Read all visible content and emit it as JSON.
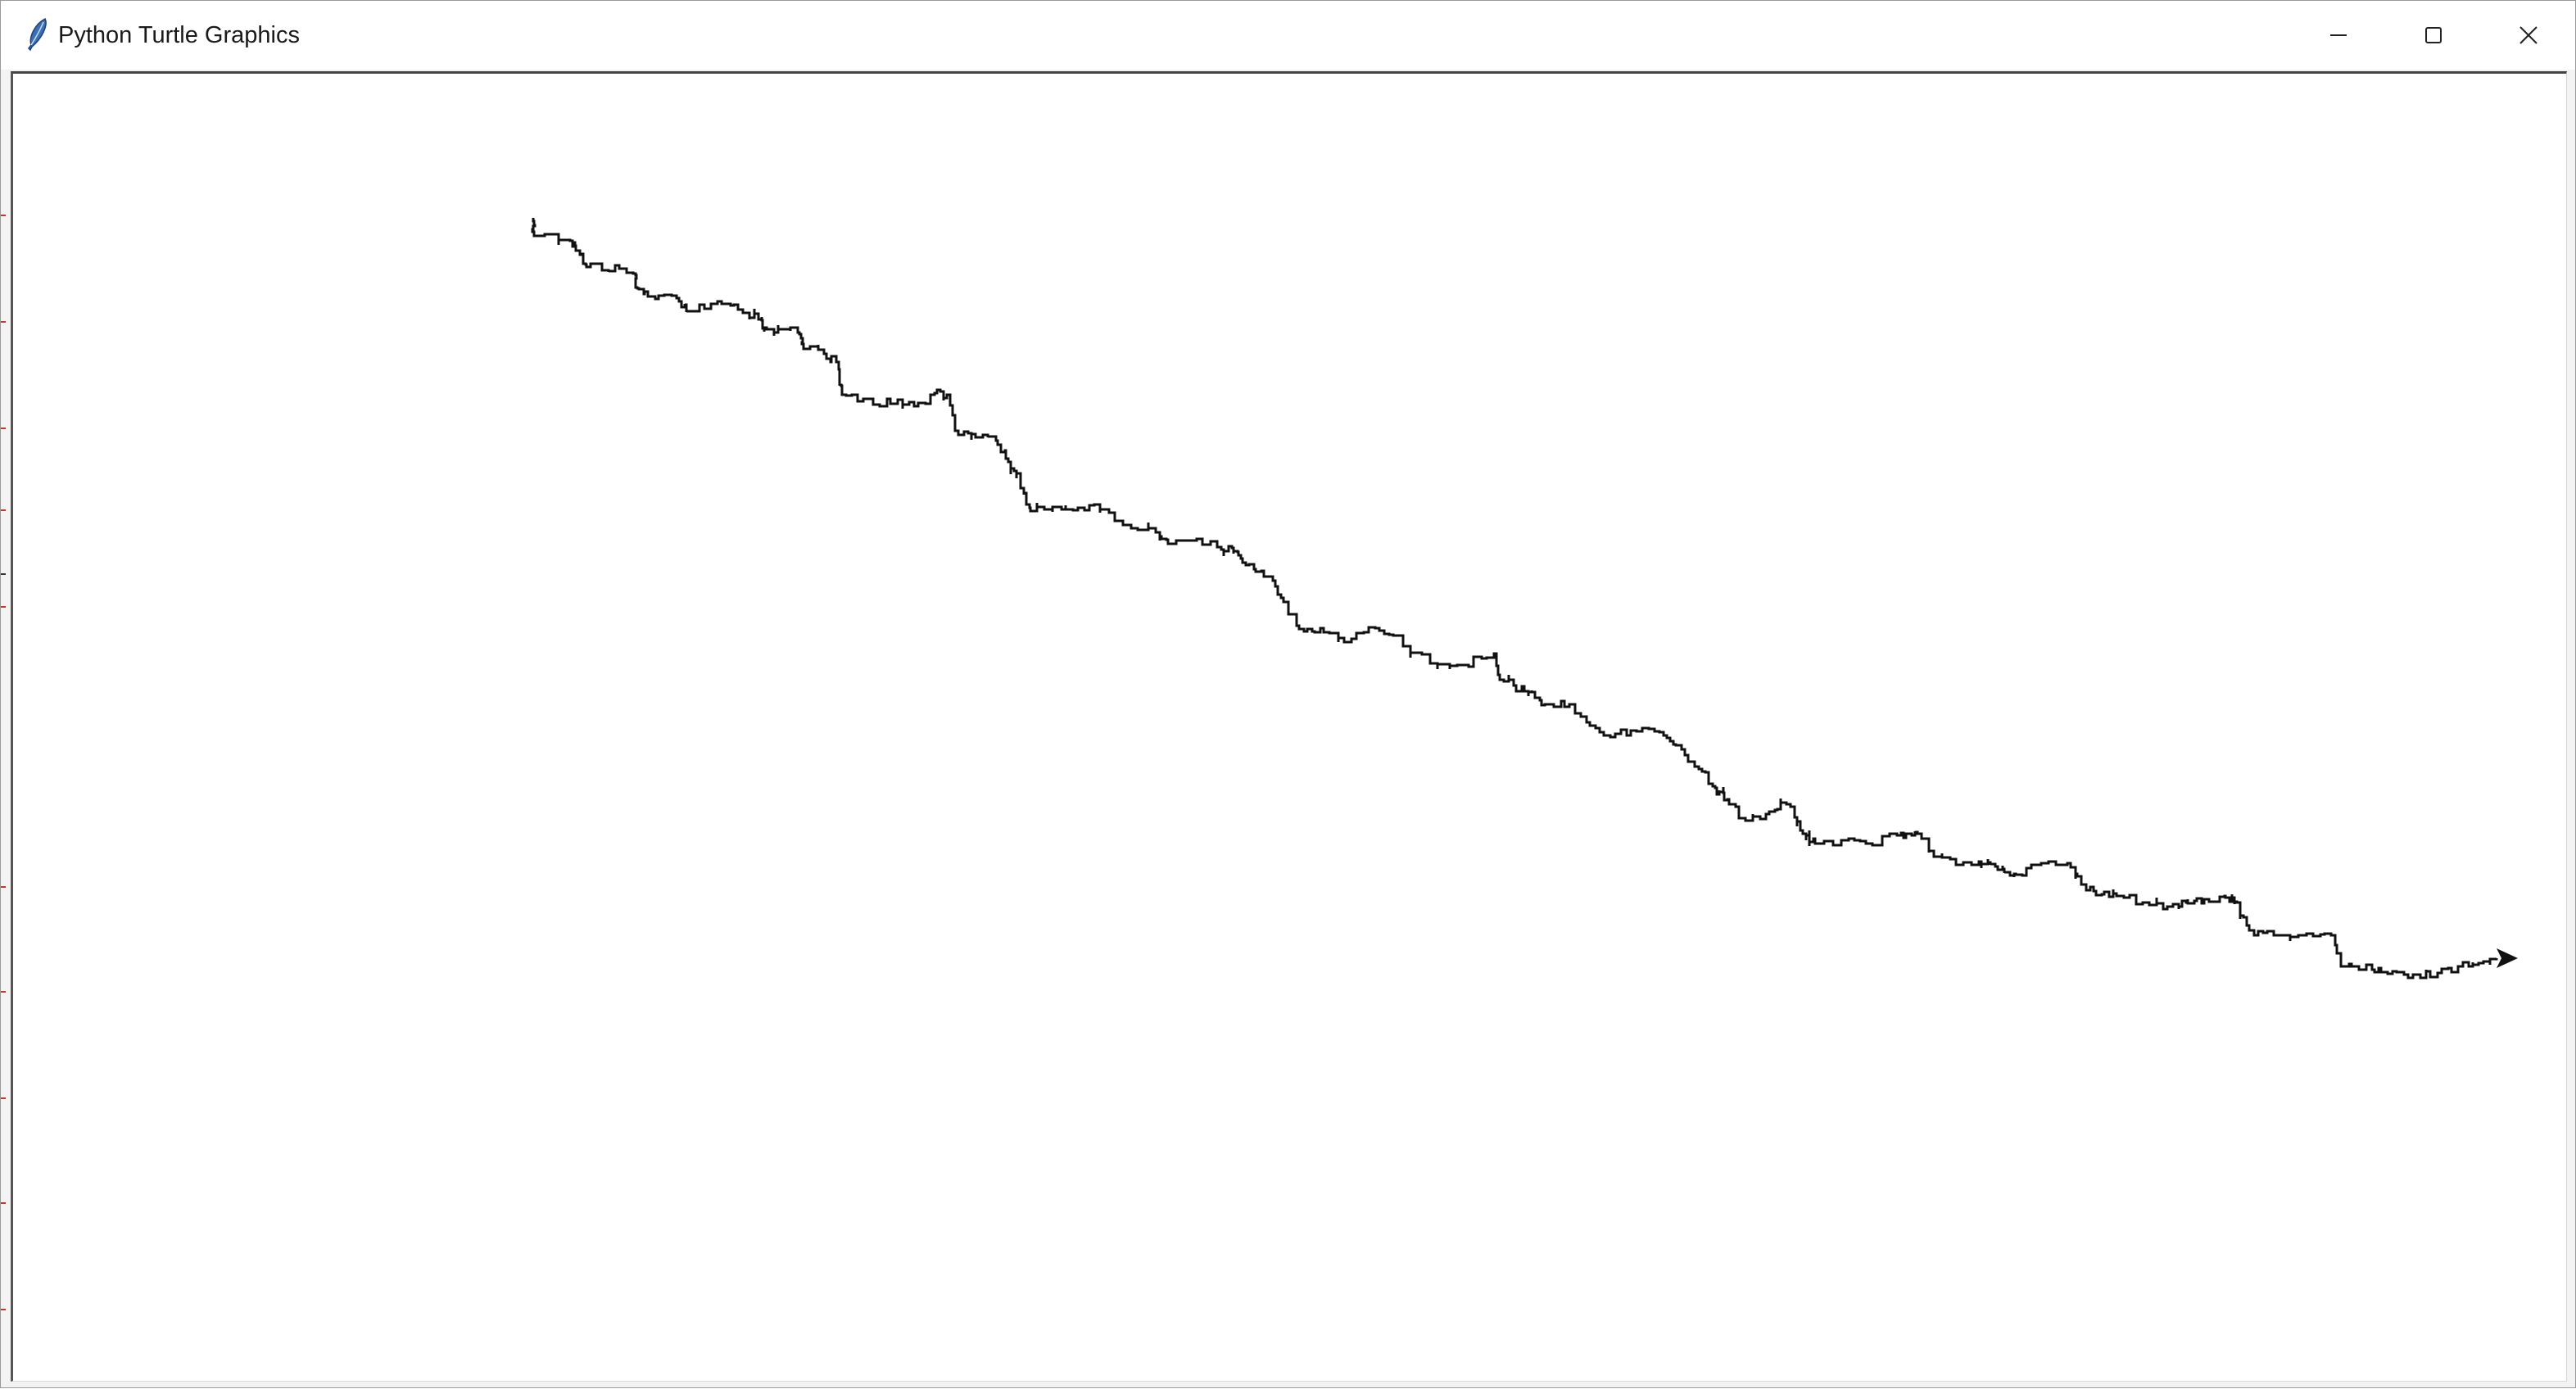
{
  "window": {
    "title": "Python Turtle Graphics",
    "icon": "feather-icon"
  },
  "controls": {
    "minimize_icon": "minimize-icon",
    "maximize_icon": "maximize-icon",
    "close_icon": "close-icon"
  },
  "canvas": {
    "background": "#ffffff",
    "line_color": "#111111",
    "turtle_shape": "arrow",
    "turtle_heading": "east"
  }
}
